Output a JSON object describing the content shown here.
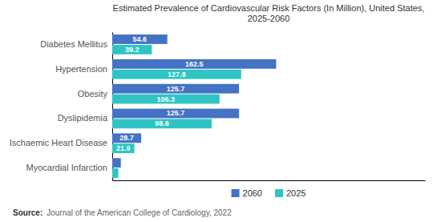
{
  "chart_data": {
    "type": "bar",
    "orientation": "horizontal",
    "title": "Estimated Prevalence of Cardiovascular Risk Factors (In Million), United States,\n2025-2060",
    "categories": [
      "Diabetes Mellitus",
      "Hypertension",
      "Obesity",
      "Dyslipidemia",
      "Ischaemic Heart Disease",
      "Myocardial Infarction"
    ],
    "series": [
      {
        "name": "2060",
        "color": "#4472C4",
        "values": [
          54.6,
          162.5,
          125.7,
          125.7,
          28.7,
          8.5
        ],
        "value_labels": [
          "54.6",
          "162.5",
          "125.7",
          "125.7",
          "28.7",
          null
        ]
      },
      {
        "name": "2025",
        "color": "#2EC4C4",
        "values": [
          39.2,
          127.8,
          106.3,
          98.6,
          21.9,
          6.0
        ],
        "value_labels": [
          "39.2",
          "127.8",
          "106.3",
          "98.6",
          "21.9",
          null
        ]
      }
    ],
    "xlim": [
      0,
      310
    ],
    "xticks": [],
    "tick_labels": "y",
    "data_labels": true,
    "legend": "bottom",
    "grid": false,
    "annotations": [
      "Source:",
      "Journal of the American College of Cardiology, 2022"
    ]
  }
}
